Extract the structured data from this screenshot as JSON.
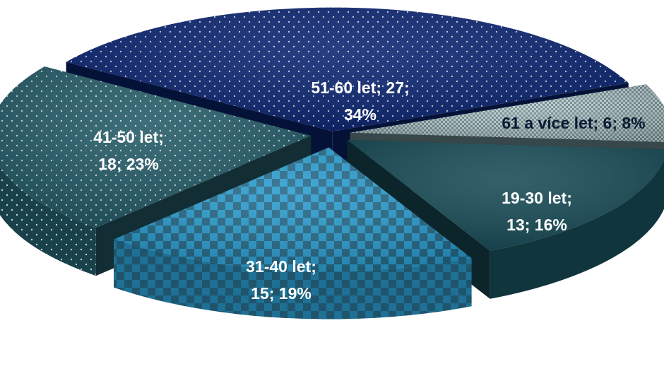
{
  "chart_data": {
    "type": "pie",
    "style": "3d-exploded",
    "title": "",
    "slices": [
      {
        "label": "51-60 let",
        "value": 27,
        "percent": 34,
        "color": "#0a2470",
        "pattern": "dots",
        "text": [
          "51-60 let; 27;",
          "34%"
        ],
        "text_color": "#ffffff"
      },
      {
        "label": "61 a více let",
        "value": 6,
        "percent": 8,
        "color": "#6f8e92",
        "pattern": "fine-check",
        "text": [
          "61 a více let; 6; 8%"
        ],
        "text_color": "#0b1b33"
      },
      {
        "label": "19-30 let",
        "value": 13,
        "percent": 16,
        "color": "#174a55",
        "pattern": "none",
        "text": [
          "19-30 let;",
          "13; 16%"
        ],
        "text_color": "#ffffff"
      },
      {
        "label": "31-40 let",
        "value": 15,
        "percent": 19,
        "color": "#2a9ccf",
        "pattern": "checker",
        "text": [
          "31-40 let;",
          "15; 19%"
        ],
        "text_color": "#ffffff"
      },
      {
        "label": "41-50 let",
        "value": 18,
        "percent": 23,
        "color": "#235a66",
        "pattern": "dots",
        "text": [
          "41-50 let;",
          "18; 23%"
        ],
        "text_color": "#ffffff"
      }
    ]
  }
}
